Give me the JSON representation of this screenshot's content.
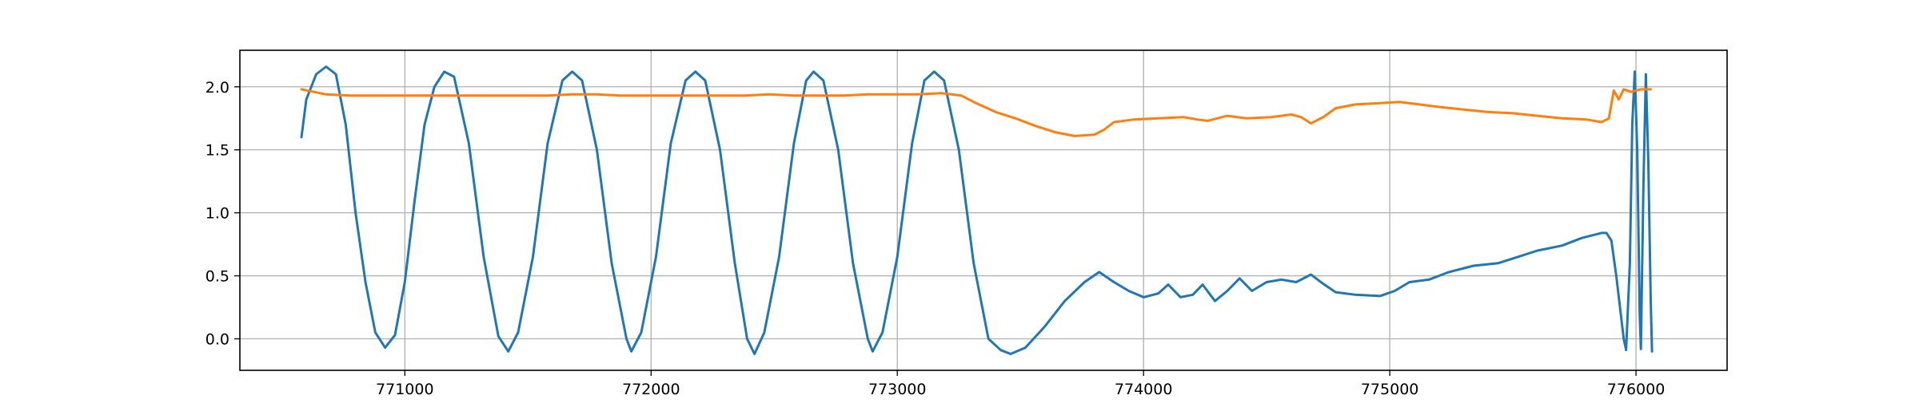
{
  "chart_data": {
    "type": "line",
    "title": "",
    "xlabel": "",
    "ylabel": "",
    "xlim": [
      770330,
      776370
    ],
    "ylim": [
      -0.25,
      2.29
    ],
    "grid": true,
    "legend": "none",
    "x_ticks": [
      {
        "value": 771000,
        "label": "771000"
      },
      {
        "value": 772000,
        "label": "772000"
      },
      {
        "value": 773000,
        "label": "773000"
      },
      {
        "value": 774000,
        "label": "774000"
      },
      {
        "value": 775000,
        "label": "775000"
      },
      {
        "value": 776000,
        "label": "776000"
      }
    ],
    "y_ticks": [
      {
        "value": 0.0,
        "label": "0.0"
      },
      {
        "value": 0.5,
        "label": "0.5"
      },
      {
        "value": 1.0,
        "label": "1.0"
      },
      {
        "value": 1.5,
        "label": "1.5"
      },
      {
        "value": 2.0,
        "label": "2.0"
      }
    ],
    "series": [
      {
        "color": "#1f77b4",
        "points": [
          [
            770580,
            1.6
          ],
          [
            770600,
            1.9
          ],
          [
            770640,
            2.1
          ],
          [
            770680,
            2.16
          ],
          [
            770720,
            2.1
          ],
          [
            770760,
            1.7
          ],
          [
            770800,
            1.0
          ],
          [
            770840,
            0.45
          ],
          [
            770880,
            0.05
          ],
          [
            770920,
            -0.07
          ],
          [
            770960,
            0.03
          ],
          [
            771000,
            0.45
          ],
          [
            771040,
            1.1
          ],
          [
            771080,
            1.7
          ],
          [
            771120,
            2.0
          ],
          [
            771160,
            2.12
          ],
          [
            771200,
            2.08
          ],
          [
            771260,
            1.55
          ],
          [
            771320,
            0.65
          ],
          [
            771380,
            0.02
          ],
          [
            771420,
            -0.1
          ],
          [
            771460,
            0.05
          ],
          [
            771520,
            0.65
          ],
          [
            771580,
            1.55
          ],
          [
            771640,
            2.05
          ],
          [
            771680,
            2.12
          ],
          [
            771720,
            2.05
          ],
          [
            771780,
            1.5
          ],
          [
            771840,
            0.6
          ],
          [
            771900,
            0.0
          ],
          [
            771920,
            -0.1
          ],
          [
            771960,
            0.05
          ],
          [
            772020,
            0.65
          ],
          [
            772080,
            1.55
          ],
          [
            772140,
            2.05
          ],
          [
            772180,
            2.12
          ],
          [
            772220,
            2.05
          ],
          [
            772280,
            1.5
          ],
          [
            772340,
            0.6
          ],
          [
            772390,
            0.0
          ],
          [
            772420,
            -0.12
          ],
          [
            772460,
            0.05
          ],
          [
            772520,
            0.65
          ],
          [
            772580,
            1.55
          ],
          [
            772630,
            2.05
          ],
          [
            772660,
            2.12
          ],
          [
            772700,
            2.05
          ],
          [
            772760,
            1.5
          ],
          [
            772820,
            0.6
          ],
          [
            772880,
            0.0
          ],
          [
            772900,
            -0.1
          ],
          [
            772940,
            0.05
          ],
          [
            773000,
            0.65
          ],
          [
            773060,
            1.55
          ],
          [
            773110,
            2.05
          ],
          [
            773150,
            2.12
          ],
          [
            773190,
            2.05
          ],
          [
            773250,
            1.5
          ],
          [
            773310,
            0.6
          ],
          [
            773370,
            0.0
          ],
          [
            773420,
            -0.09
          ],
          [
            773460,
            -0.12
          ],
          [
            773520,
            -0.07
          ],
          [
            773600,
            0.1
          ],
          [
            773680,
            0.3
          ],
          [
            773760,
            0.45
          ],
          [
            773820,
            0.53
          ],
          [
            773880,
            0.45
          ],
          [
            773940,
            0.38
          ],
          [
            774000,
            0.33
          ],
          [
            774060,
            0.36
          ],
          [
            774100,
            0.43
          ],
          [
            774150,
            0.33
          ],
          [
            774200,
            0.35
          ],
          [
            774240,
            0.43
          ],
          [
            774290,
            0.3
          ],
          [
            774340,
            0.38
          ],
          [
            774390,
            0.48
          ],
          [
            774440,
            0.38
          ],
          [
            774500,
            0.45
          ],
          [
            774560,
            0.47
          ],
          [
            774620,
            0.45
          ],
          [
            774680,
            0.51
          ],
          [
            774720,
            0.45
          ],
          [
            774780,
            0.37
          ],
          [
            774860,
            0.35
          ],
          [
            774960,
            0.34
          ],
          [
            775020,
            0.38
          ],
          [
            775080,
            0.45
          ],
          [
            775160,
            0.47
          ],
          [
            775240,
            0.53
          ],
          [
            775340,
            0.58
          ],
          [
            775440,
            0.6
          ],
          [
            775520,
            0.65
          ],
          [
            775600,
            0.7
          ],
          [
            775700,
            0.74
          ],
          [
            775780,
            0.8
          ],
          [
            775860,
            0.84
          ],
          [
            775880,
            0.84
          ],
          [
            775900,
            0.78
          ],
          [
            775920,
            0.5
          ],
          [
            775950,
            0.0
          ],
          [
            775960,
            -0.09
          ],
          [
            775975,
            0.6
          ],
          [
            775985,
            1.7
          ],
          [
            775995,
            2.12
          ],
          [
            776005,
            1.5
          ],
          [
            776015,
            0.2
          ],
          [
            776020,
            -0.08
          ],
          [
            776030,
            1.2
          ],
          [
            776040,
            2.1
          ],
          [
            776050,
            1.4
          ],
          [
            776060,
            0.3
          ],
          [
            776065,
            -0.1
          ]
        ]
      },
      {
        "color": "#ff7f0e",
        "points": [
          [
            770580,
            1.98
          ],
          [
            770680,
            1.94
          ],
          [
            770780,
            1.93
          ],
          [
            770880,
            1.93
          ],
          [
            770980,
            1.93
          ],
          [
            771080,
            1.93
          ],
          [
            771180,
            1.93
          ],
          [
            771280,
            1.93
          ],
          [
            771380,
            1.93
          ],
          [
            771480,
            1.93
          ],
          [
            771580,
            1.93
          ],
          [
            771680,
            1.94
          ],
          [
            771780,
            1.94
          ],
          [
            771880,
            1.93
          ],
          [
            771980,
            1.93
          ],
          [
            772080,
            1.93
          ],
          [
            772180,
            1.93
          ],
          [
            772280,
            1.93
          ],
          [
            772380,
            1.93
          ],
          [
            772480,
            1.94
          ],
          [
            772580,
            1.93
          ],
          [
            772680,
            1.93
          ],
          [
            772780,
            1.93
          ],
          [
            772880,
            1.94
          ],
          [
            772980,
            1.94
          ],
          [
            773080,
            1.94
          ],
          [
            773180,
            1.95
          ],
          [
            773260,
            1.93
          ],
          [
            773320,
            1.87
          ],
          [
            773400,
            1.8
          ],
          [
            773480,
            1.75
          ],
          [
            773560,
            1.69
          ],
          [
            773640,
            1.64
          ],
          [
            773720,
            1.61
          ],
          [
            773800,
            1.62
          ],
          [
            773840,
            1.66
          ],
          [
            773880,
            1.72
          ],
          [
            773960,
            1.74
          ],
          [
            774060,
            1.75
          ],
          [
            774160,
            1.76
          ],
          [
            774220,
            1.74
          ],
          [
            774260,
            1.73
          ],
          [
            774340,
            1.77
          ],
          [
            774420,
            1.75
          ],
          [
            774520,
            1.76
          ],
          [
            774600,
            1.78
          ],
          [
            774640,
            1.76
          ],
          [
            774680,
            1.71
          ],
          [
            774730,
            1.76
          ],
          [
            774780,
            1.83
          ],
          [
            774860,
            1.86
          ],
          [
            774960,
            1.87
          ],
          [
            775040,
            1.88
          ],
          [
            775120,
            1.86
          ],
          [
            775200,
            1.84
          ],
          [
            775300,
            1.82
          ],
          [
            775400,
            1.8
          ],
          [
            775500,
            1.79
          ],
          [
            775600,
            1.77
          ],
          [
            775700,
            1.75
          ],
          [
            775800,
            1.74
          ],
          [
            775860,
            1.72
          ],
          [
            775890,
            1.75
          ],
          [
            775910,
            1.97
          ],
          [
            775930,
            1.9
          ],
          [
            775950,
            1.98
          ],
          [
            775980,
            1.96
          ],
          [
            776020,
            1.98
          ],
          [
            776060,
            1.98
          ]
        ]
      }
    ]
  }
}
